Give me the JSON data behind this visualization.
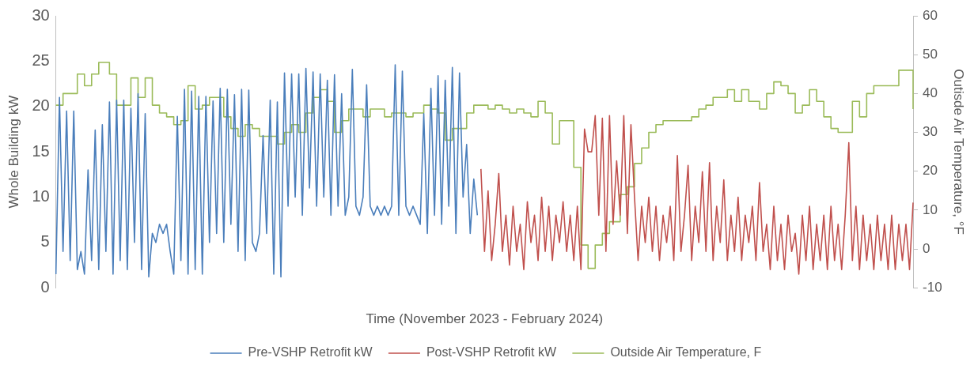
{
  "chart_data": {
    "type": "line",
    "xlabel": "Time (November 2023 - February 2024)",
    "ylabel": "Whole Building kW",
    "y2label": "Outisde Air Temperature, °F",
    "categories": [
      null,
      null,
      null,
      null,
      null,
      null,
      null,
      null,
      null,
      null,
      null,
      null,
      null,
      null,
      null,
      null,
      null,
      null,
      null,
      null,
      null,
      null,
      null,
      null,
      null,
      null,
      null,
      null,
      null,
      null,
      null,
      null,
      null,
      null,
      null,
      null,
      null,
      null,
      null,
      null,
      null,
      null,
      null,
      null,
      null,
      null,
      null,
      null,
      null,
      null,
      null,
      null,
      null,
      null,
      null,
      null,
      null,
      null,
      null,
      null,
      null,
      null,
      null,
      null,
      null,
      null,
      null,
      null,
      null,
      null,
      null,
      null,
      null,
      null,
      null,
      null,
      null,
      null,
      null,
      null,
      null,
      null,
      null,
      null,
      null,
      null,
      null,
      null,
      null,
      null,
      null,
      null,
      null,
      null,
      null,
      null,
      null,
      null,
      null,
      null,
      null,
      null,
      null,
      null,
      null,
      null,
      null,
      null,
      null,
      null,
      null,
      null,
      null,
      null,
      null,
      null,
      null,
      null,
      null,
      null,
      null,
      null,
      null,
      null,
      null,
      null,
      null,
      null,
      null,
      null,
      null,
      null,
      null,
      null,
      null,
      null,
      null,
      null,
      null,
      null,
      null,
      null,
      null,
      null,
      null,
      null,
      null,
      null,
      null,
      null,
      null,
      null,
      null,
      null,
      null,
      null,
      null,
      null,
      null,
      null,
      null,
      null,
      null,
      null,
      null,
      null,
      null,
      null,
      null,
      null,
      null,
      null,
      null,
      null,
      null,
      null,
      null,
      null,
      null,
      null,
      null,
      null,
      null,
      null,
      null,
      null,
      null,
      null,
      null,
      null,
      null,
      null,
      null,
      null,
      null,
      null,
      null,
      null,
      null,
      null,
      null,
      null,
      null,
      null,
      null,
      null,
      null,
      null,
      null,
      null,
      null,
      null,
      null,
      null,
      null,
      null,
      null,
      null,
      null,
      null,
      null,
      null,
      null,
      null,
      null,
      null,
      null,
      null,
      null,
      null,
      null,
      null,
      null,
      null,
      null,
      null,
      null,
      null,
      null,
      null,
      null
    ],
    "series": [
      {
        "name": "Pre-VSHP Retrofit kW",
        "color": "#4a7ebb",
        "values": [
          1.5,
          21,
          4,
          19.5,
          3,
          19.5,
          2,
          4,
          1.5,
          13,
          3,
          17.4,
          2,
          18,
          4,
          20.5,
          1.5,
          20.7,
          3,
          20.7,
          2,
          19.8,
          5,
          21.4,
          2,
          19.2,
          1.2,
          6,
          5,
          7,
          6,
          7,
          4,
          1.5,
          18.9,
          3,
          21.9,
          1.5,
          21.7,
          2,
          21.1,
          1.5,
          21.1,
          5,
          20.6,
          6,
          22,
          5,
          21.9,
          7,
          21.3,
          4,
          21.9,
          3,
          21.8,
          5,
          4,
          6,
          16.8,
          6,
          20.7,
          1.5,
          20.5,
          1.2,
          23.7,
          9,
          23.6,
          10,
          23.6,
          8,
          24.2,
          11,
          23.8,
          9,
          23.6,
          10,
          22.9,
          8,
          23.5,
          9,
          21.4,
          8,
          10,
          24.1,
          9,
          8,
          10,
          22.4,
          9,
          8,
          9,
          8,
          9,
          8,
          9,
          24.6,
          8,
          23.9,
          9,
          8,
          9,
          8,
          7,
          19.2,
          6,
          22,
          8,
          23.4,
          7,
          22.9,
          9,
          24.3,
          6,
          23.7,
          10,
          15.8,
          6,
          12,
          8,
          null,
          null,
          null,
          null,
          null,
          null,
          null,
          null,
          null,
          null,
          null,
          null,
          null,
          null,
          null,
          null,
          null,
          null,
          null,
          null,
          null,
          null,
          null,
          null,
          null,
          null,
          null,
          null,
          null,
          null,
          null,
          null,
          null,
          null,
          null,
          null,
          null,
          null,
          null,
          null,
          null,
          null,
          null,
          null,
          null,
          null,
          null,
          null,
          null,
          null,
          null,
          null,
          null,
          null,
          null,
          null,
          null,
          null,
          null,
          null,
          null,
          null,
          null,
          null,
          null,
          null,
          null,
          null,
          null,
          null,
          null,
          null,
          null,
          null,
          null,
          null,
          null,
          null,
          null,
          null,
          null,
          null,
          null,
          null,
          null,
          null,
          null,
          null,
          null,
          null,
          null,
          null,
          null,
          null,
          null,
          null,
          null,
          null,
          null,
          null,
          null,
          null,
          null,
          null,
          null,
          null,
          null,
          null,
          null,
          null,
          null,
          null,
          null,
          null,
          null,
          null,
          null,
          null,
          null,
          null,
          null,
          null
        ]
      },
      {
        "name": "Post-VSHP Retrofit kW",
        "color": "#c0504d",
        "values": [
          null,
          null,
          null,
          null,
          null,
          null,
          null,
          null,
          null,
          null,
          null,
          null,
          null,
          null,
          null,
          null,
          null,
          null,
          null,
          null,
          null,
          null,
          null,
          null,
          null,
          null,
          null,
          null,
          null,
          null,
          null,
          null,
          null,
          null,
          null,
          null,
          null,
          null,
          null,
          null,
          null,
          null,
          null,
          null,
          null,
          null,
          null,
          null,
          null,
          null,
          null,
          null,
          null,
          null,
          null,
          null,
          null,
          null,
          null,
          null,
          null,
          null,
          null,
          null,
          null,
          null,
          null,
          null,
          null,
          null,
          null,
          null,
          null,
          null,
          null,
          null,
          null,
          null,
          null,
          null,
          null,
          null,
          null,
          null,
          null,
          null,
          null,
          null,
          null,
          null,
          null,
          null,
          null,
          null,
          null,
          null,
          null,
          null,
          null,
          null,
          null,
          null,
          null,
          null,
          null,
          null,
          null,
          null,
          null,
          null,
          null,
          null,
          null,
          null,
          null,
          null,
          null,
          null,
          null,
          13.1,
          4,
          10.7,
          3,
          7,
          12.6,
          4,
          8,
          2.5,
          9,
          4,
          7,
          2,
          9.5,
          5,
          8,
          3,
          10,
          4,
          9,
          3,
          8,
          5,
          9.5,
          4,
          8,
          3,
          9,
          2,
          17.5,
          15,
          15,
          19,
          8,
          18.7,
          4,
          19,
          7,
          14,
          8,
          19,
          6,
          18,
          10,
          3,
          9,
          5,
          10,
          4,
          9,
          3,
          8,
          5,
          9,
          3,
          14.6,
          4,
          8,
          13.5,
          3,
          9,
          5,
          12.8,
          4,
          13.8,
          3,
          9,
          5,
          11.9,
          3,
          8,
          4,
          10,
          3,
          8,
          5,
          9,
          3,
          11.6,
          4,
          7,
          2,
          9,
          3,
          7,
          2,
          8,
          4,
          6,
          1.5,
          8,
          3,
          9,
          2,
          7,
          3,
          8,
          2,
          9,
          3,
          7,
          2,
          8,
          16,
          3,
          9,
          2,
          8,
          3,
          7,
          2,
          8,
          3,
          7,
          2,
          8,
          2,
          7,
          3,
          7,
          2,
          9.4
        ]
      },
      {
        "name": "Outside Air Temperature, F",
        "color": "#9bbb59",
        "type": "step",
        "axis": "y2",
        "values": [
          37,
          37,
          40,
          40,
          40,
          40,
          45,
          45,
          42,
          42,
          45,
          45,
          48,
          48,
          48,
          45,
          45,
          37,
          37,
          37,
          37,
          44,
          44,
          39,
          39,
          44,
          44,
          37,
          37,
          35,
          35,
          34,
          34,
          32,
          32,
          33,
          33,
          42,
          42,
          36,
          36,
          37,
          37,
          39,
          39,
          39,
          39,
          34,
          34,
          31,
          31,
          29,
          29,
          32,
          32,
          31,
          31,
          29,
          29,
          29,
          29,
          29,
          27,
          27,
          30,
          30,
          32,
          32,
          30,
          30,
          35,
          35,
          39,
          39,
          41,
          41,
          38,
          38,
          30,
          30,
          33,
          33,
          36,
          36,
          36,
          36,
          34,
          34,
          36,
          36,
          36,
          36,
          34,
          34,
          35,
          35,
          35,
          35,
          34,
          34,
          35,
          35,
          35,
          37,
          37,
          36,
          36,
          35,
          35,
          28,
          28,
          31,
          31,
          31,
          31,
          35,
          35,
          37,
          37,
          37,
          37,
          36,
          36,
          37,
          37,
          36,
          36,
          35,
          35,
          36,
          36,
          35,
          35,
          34,
          34,
          38,
          38,
          35,
          35,
          27,
          27,
          33,
          33,
          33,
          33,
          21,
          21,
          1,
          1,
          -5,
          -5,
          1,
          1,
          4,
          4,
          7,
          7,
          7,
          14,
          14,
          16,
          16,
          22,
          22,
          26,
          26,
          30,
          30,
          32,
          32,
          33,
          33,
          33,
          33,
          33,
          33,
          33,
          33,
          34,
          34,
          36,
          36,
          37,
          37,
          39,
          39,
          39,
          39,
          41,
          41,
          38,
          38,
          41,
          41,
          38,
          38,
          38,
          36,
          36,
          40,
          40,
          43,
          43,
          42,
          42,
          40,
          40,
          35,
          35,
          37,
          37,
          41,
          41,
          38,
          38,
          34,
          34,
          31,
          31,
          30,
          30,
          30,
          30,
          38,
          38,
          34,
          34,
          40,
          40,
          42,
          42,
          42,
          42,
          42,
          42,
          42,
          46,
          46,
          46,
          46,
          36
        ]
      }
    ],
    "ylim": [
      0,
      30
    ],
    "yticks": [
      0,
      5,
      10,
      15,
      20,
      25,
      30
    ],
    "y2lim": [
      -10,
      60
    ],
    "y2ticks": [
      -10,
      0,
      10,
      20,
      30,
      40,
      50,
      60
    ],
    "grid": false,
    "legend": "bottom",
    "marker": "none",
    "line_style": "solid"
  }
}
